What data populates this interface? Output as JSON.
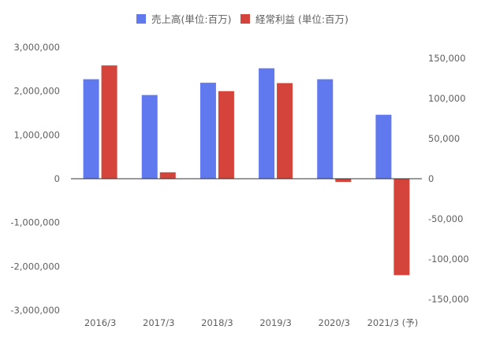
{
  "chart_data": {
    "type": "bar",
    "categories": [
      "2016/3",
      "2017/3",
      "2018/3",
      "2019/3",
      "2020/3",
      "2021/3 (予)"
    ],
    "series": [
      {
        "name": "売上高(単位:百万)",
        "axis": "left",
        "color": "#6079ef",
        "values": [
          2270000,
          1910000,
          2190000,
          2520000,
          2270000,
          1460000
        ]
      },
      {
        "name": "経常利益 (単位:百万)",
        "axis": "right",
        "color": "#d5443a",
        "values": [
          141000,
          8000,
          109000,
          119000,
          -4000,
          -120000
        ]
      }
    ],
    "left_axis": {
      "ylim": [
        -3000000,
        3000000
      ],
      "ticks": [
        3000000,
        2000000,
        1000000,
        0,
        -1000000,
        -2000000,
        -3000000
      ],
      "tick_labels": [
        "3,000,000",
        "2,000,000",
        "1,000,000",
        "0",
        "-1,000,000",
        "-2,000,000",
        "-3,000,000"
      ]
    },
    "right_axis": {
      "ylim": [
        -163636,
        163636
      ],
      "ticks": [
        150000,
        100000,
        50000,
        0,
        -50000,
        -100000,
        -150000
      ],
      "tick_labels": [
        "150,000",
        "100,000",
        "50,000",
        "0",
        "-50,000",
        "-100,000",
        "-150,000"
      ]
    },
    "legend_position": "top-center",
    "grid": false
  }
}
